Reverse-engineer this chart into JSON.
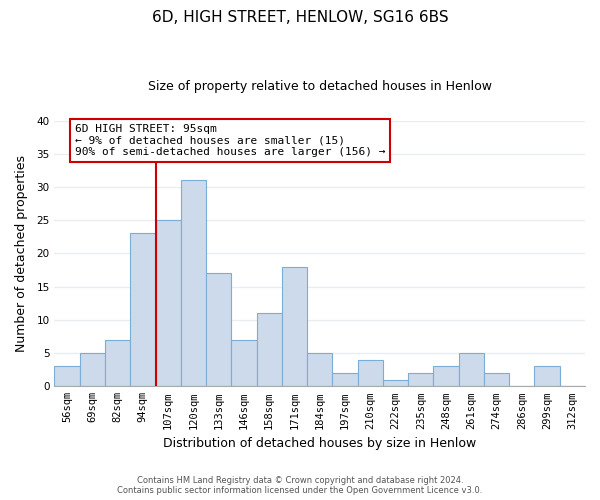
{
  "title": "6D, HIGH STREET, HENLOW, SG16 6BS",
  "subtitle": "Size of property relative to detached houses in Henlow",
  "xlabel": "Distribution of detached houses by size in Henlow",
  "ylabel": "Number of detached properties",
  "bin_labels": [
    "56sqm",
    "69sqm",
    "82sqm",
    "94sqm",
    "107sqm",
    "120sqm",
    "133sqm",
    "146sqm",
    "158sqm",
    "171sqm",
    "184sqm",
    "197sqm",
    "210sqm",
    "222sqm",
    "235sqm",
    "248sqm",
    "261sqm",
    "274sqm",
    "286sqm",
    "299sqm",
    "312sqm"
  ],
  "bar_values": [
    3,
    5,
    7,
    23,
    25,
    31,
    17,
    7,
    11,
    18,
    5,
    2,
    4,
    1,
    2,
    3,
    5,
    2,
    0,
    3,
    0
  ],
  "bar_color": "#ccdaeb",
  "bar_edge_color": "#7aaed6",
  "annotation_label": "6D HIGH STREET: 95sqm",
  "annotation_line1": "← 9% of detached houses are smaller (15)",
  "annotation_line2": "90% of semi-detached houses are larger (156) →",
  "annotation_box_color": "white",
  "annotation_box_edge_color": "#cc0000",
  "vline_color": "#cc0000",
  "vline_x": 3.5,
  "ylim": [
    0,
    40
  ],
  "yticks": [
    0,
    5,
    10,
    15,
    20,
    25,
    30,
    35,
    40
  ],
  "footer1": "Contains HM Land Registry data © Crown copyright and database right 2024.",
  "footer2": "Contains public sector information licensed under the Open Government Licence v3.0.",
  "bg_color": "#ffffff",
  "plot_bg_color": "#ffffff",
  "grid_color": "#e8edf2",
  "title_fontsize": 11,
  "subtitle_fontsize": 9,
  "annotation_fontsize": 8,
  "axis_label_fontsize": 9,
  "tick_fontsize": 7.5
}
